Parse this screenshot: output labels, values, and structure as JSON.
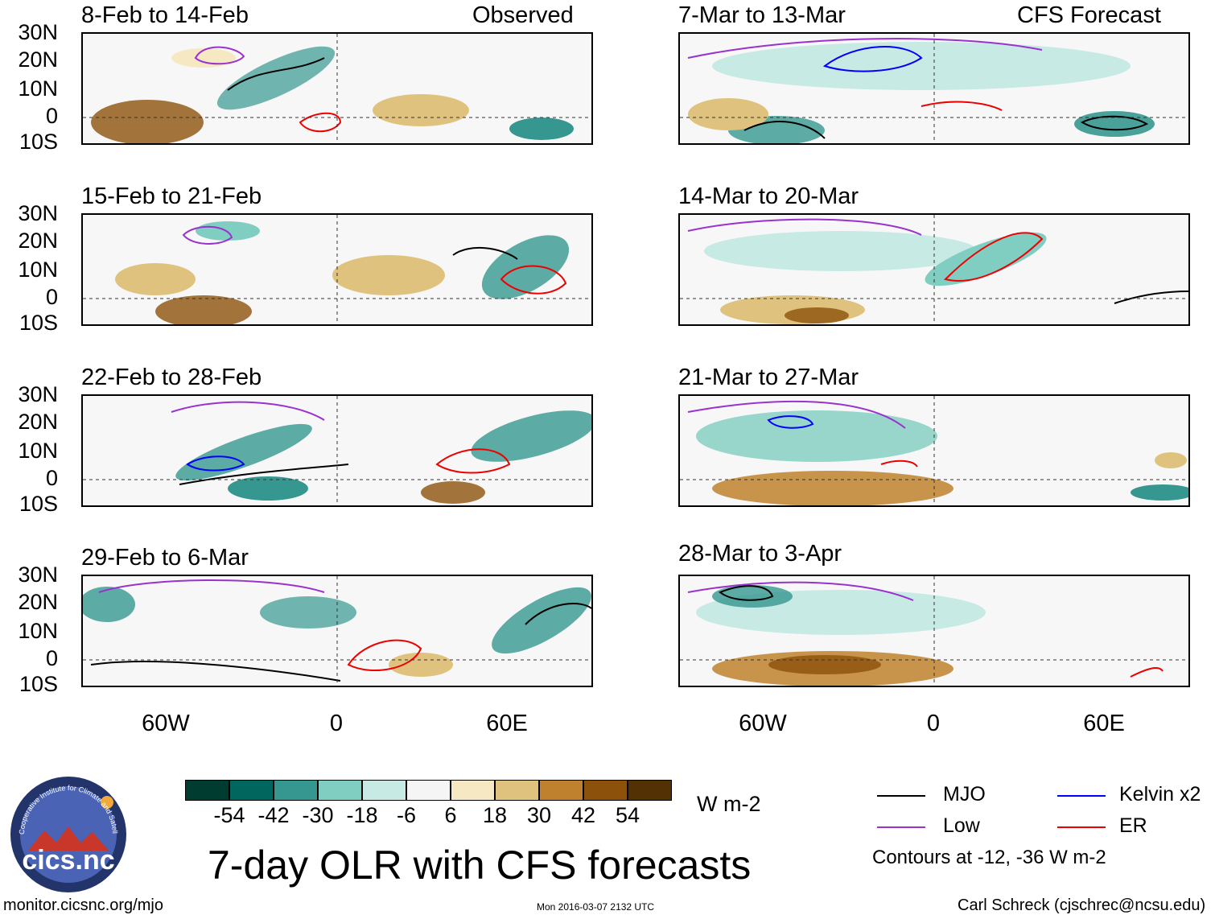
{
  "header": {
    "left_label": "Observed",
    "right_label": "CFS Forecast"
  },
  "panels_left": [
    {
      "title": "8-Feb to 14-Feb"
    },
    {
      "title": "15-Feb to 21-Feb"
    },
    {
      "title": "22-Feb to 28-Feb"
    },
    {
      "title": "29-Feb to 6-Mar"
    }
  ],
  "panels_right": [
    {
      "title": "7-Mar to 13-Mar"
    },
    {
      "title": "14-Mar to 20-Mar"
    },
    {
      "title": "21-Mar to 27-Mar"
    },
    {
      "title": "28-Mar to 3-Apr"
    }
  ],
  "lat_labels": [
    "30N",
    "20N",
    "10N",
    "0",
    "10S"
  ],
  "lon_labels": [
    "60W",
    "0",
    "60E"
  ],
  "colorbar": {
    "unit": "W m-2",
    "labels": [
      "-54",
      "-42",
      "-30",
      "-18",
      "-6",
      "6",
      "18",
      "30",
      "42",
      "54"
    ],
    "colors": [
      "#003c30",
      "#01665e",
      "#35978f",
      "#80cdc1",
      "#c7eae5",
      "#f5f5f5",
      "#f6e8c3",
      "#dfc27d",
      "#bf812d",
      "#8c510a",
      "#543005"
    ]
  },
  "legend": {
    "items": [
      {
        "label": "MJO",
        "color": "#000000"
      },
      {
        "label": "Kelvin x2",
        "color": "#0000ff"
      },
      {
        "label": "Low",
        "color": "#9a32cd"
      },
      {
        "label": "ER",
        "color": "#ee0000"
      }
    ],
    "note": "Contours at -12, -36 W m-2"
  },
  "footer": {
    "logo_text": "cics.nc",
    "logo_ring_text": "Cooperative Institute for Climate and Satellites",
    "title": "7-day OLR with CFS forecasts",
    "url": "monitor.cicsnc.org/mjo",
    "timestamp": "Mon 2016-03-07 2132 UTC",
    "credit": "Carl Schreck (cjschrec@ncsu.edu)"
  }
}
